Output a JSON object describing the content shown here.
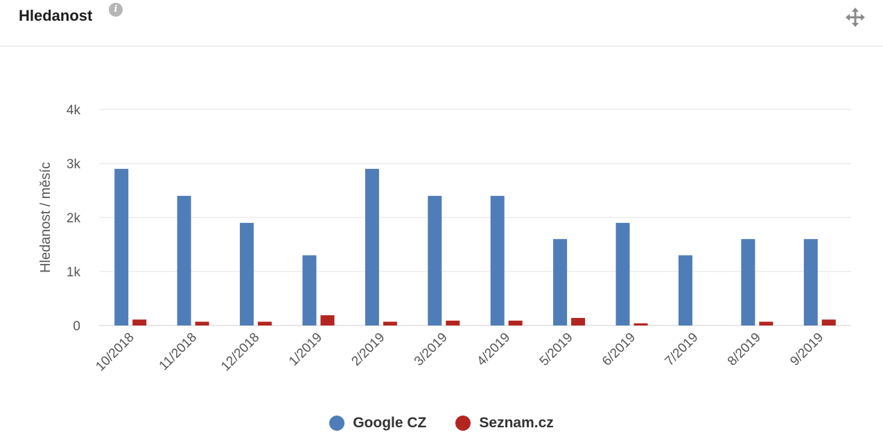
{
  "header": {
    "title": "Hledanost",
    "info_icon": "info-icon",
    "info_glyph": "i",
    "move_icon": "move-arrows-icon"
  },
  "colors": {
    "google": "#4f7db8",
    "seznam": "#b32520"
  },
  "chart_data": {
    "type": "bar",
    "categories": [
      "10/2018",
      "11/2018",
      "12/2018",
      "1/2019",
      "2/2019",
      "3/2019",
      "4/2019",
      "5/2019",
      "6/2019",
      "7/2019",
      "8/2019",
      "9/2019"
    ],
    "series": [
      {
        "name": "Google CZ",
        "values": [
          2900,
          2400,
          1900,
          1300,
          2900,
          2400,
          2400,
          1600,
          1900,
          1300,
          1600,
          1600
        ]
      },
      {
        "name": "Seznam.cz",
        "values": [
          110,
          70,
          70,
          190,
          70,
          90,
          90,
          140,
          40,
          0,
          70,
          110
        ]
      }
    ],
    "title": "",
    "xlabel": "",
    "ylabel": "Hledanost / měsíc",
    "ylim": [
      0,
      4000
    ],
    "yticks": [
      {
        "value": 0,
        "label": "0"
      },
      {
        "value": 1000,
        "label": "1k"
      },
      {
        "value": 2000,
        "label": "2k"
      },
      {
        "value": 3000,
        "label": "3k"
      },
      {
        "value": 4000,
        "label": "4k"
      }
    ],
    "grid": true,
    "legend": "bottom-center"
  }
}
